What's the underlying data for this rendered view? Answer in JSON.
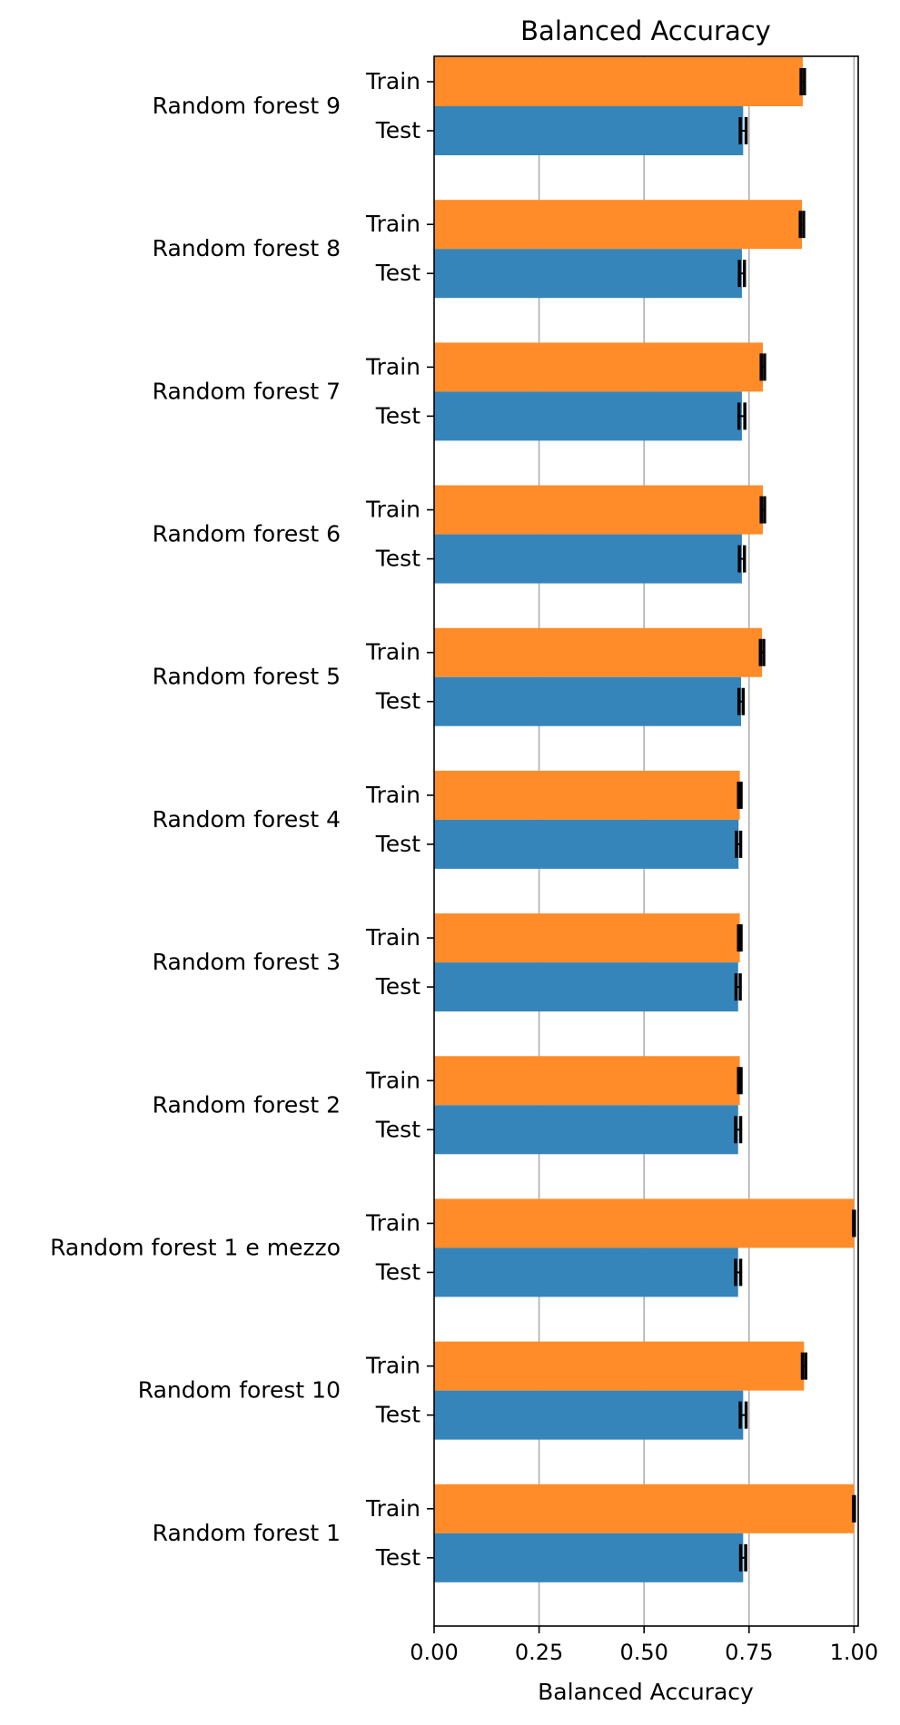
{
  "chart_data": {
    "type": "bar",
    "orientation": "horizontal",
    "title": "Balanced Accuracy",
    "xlabel": "Balanced Accuracy",
    "ylabel": "",
    "xlim": [
      0,
      1.01
    ],
    "xticks": [
      {
        "value": 0.0,
        "label": "0.00"
      },
      {
        "value": 0.25,
        "label": "0.25"
      },
      {
        "value": 0.5,
        "label": "0.50"
      },
      {
        "value": 0.75,
        "label": "0.75"
      },
      {
        "value": 1.0,
        "label": "1.00"
      }
    ],
    "grid": "x",
    "legend": "none",
    "categories": [
      "Random forest 9",
      "Random forest 8",
      "Random forest 7",
      "Random forest 6",
      "Random forest 5",
      "Random forest 4",
      "Random forest 3",
      "Random forest 2",
      "Random forest 1 e mezzo",
      "Random forest 10",
      "Random forest 1"
    ],
    "series": [
      {
        "name": "Train",
        "color": "#ff8c28",
        "values": [
          0.878,
          0.876,
          0.783,
          0.783,
          0.781,
          0.728,
          0.728,
          0.728,
          1.0,
          0.881,
          1.0
        ],
        "errors": [
          0.004,
          0.004,
          0.004,
          0.004,
          0.004,
          0.003,
          0.003,
          0.003,
          0.001,
          0.004,
          0.001
        ]
      },
      {
        "name": "Test",
        "color": "#3585bb",
        "values": [
          0.736,
          0.733,
          0.733,
          0.733,
          0.731,
          0.725,
          0.724,
          0.724,
          0.724,
          0.736,
          0.736
        ],
        "errors": [
          0.007,
          0.006,
          0.007,
          0.006,
          0.005,
          0.005,
          0.005,
          0.006,
          0.006,
          0.007,
          0.006
        ]
      }
    ]
  }
}
